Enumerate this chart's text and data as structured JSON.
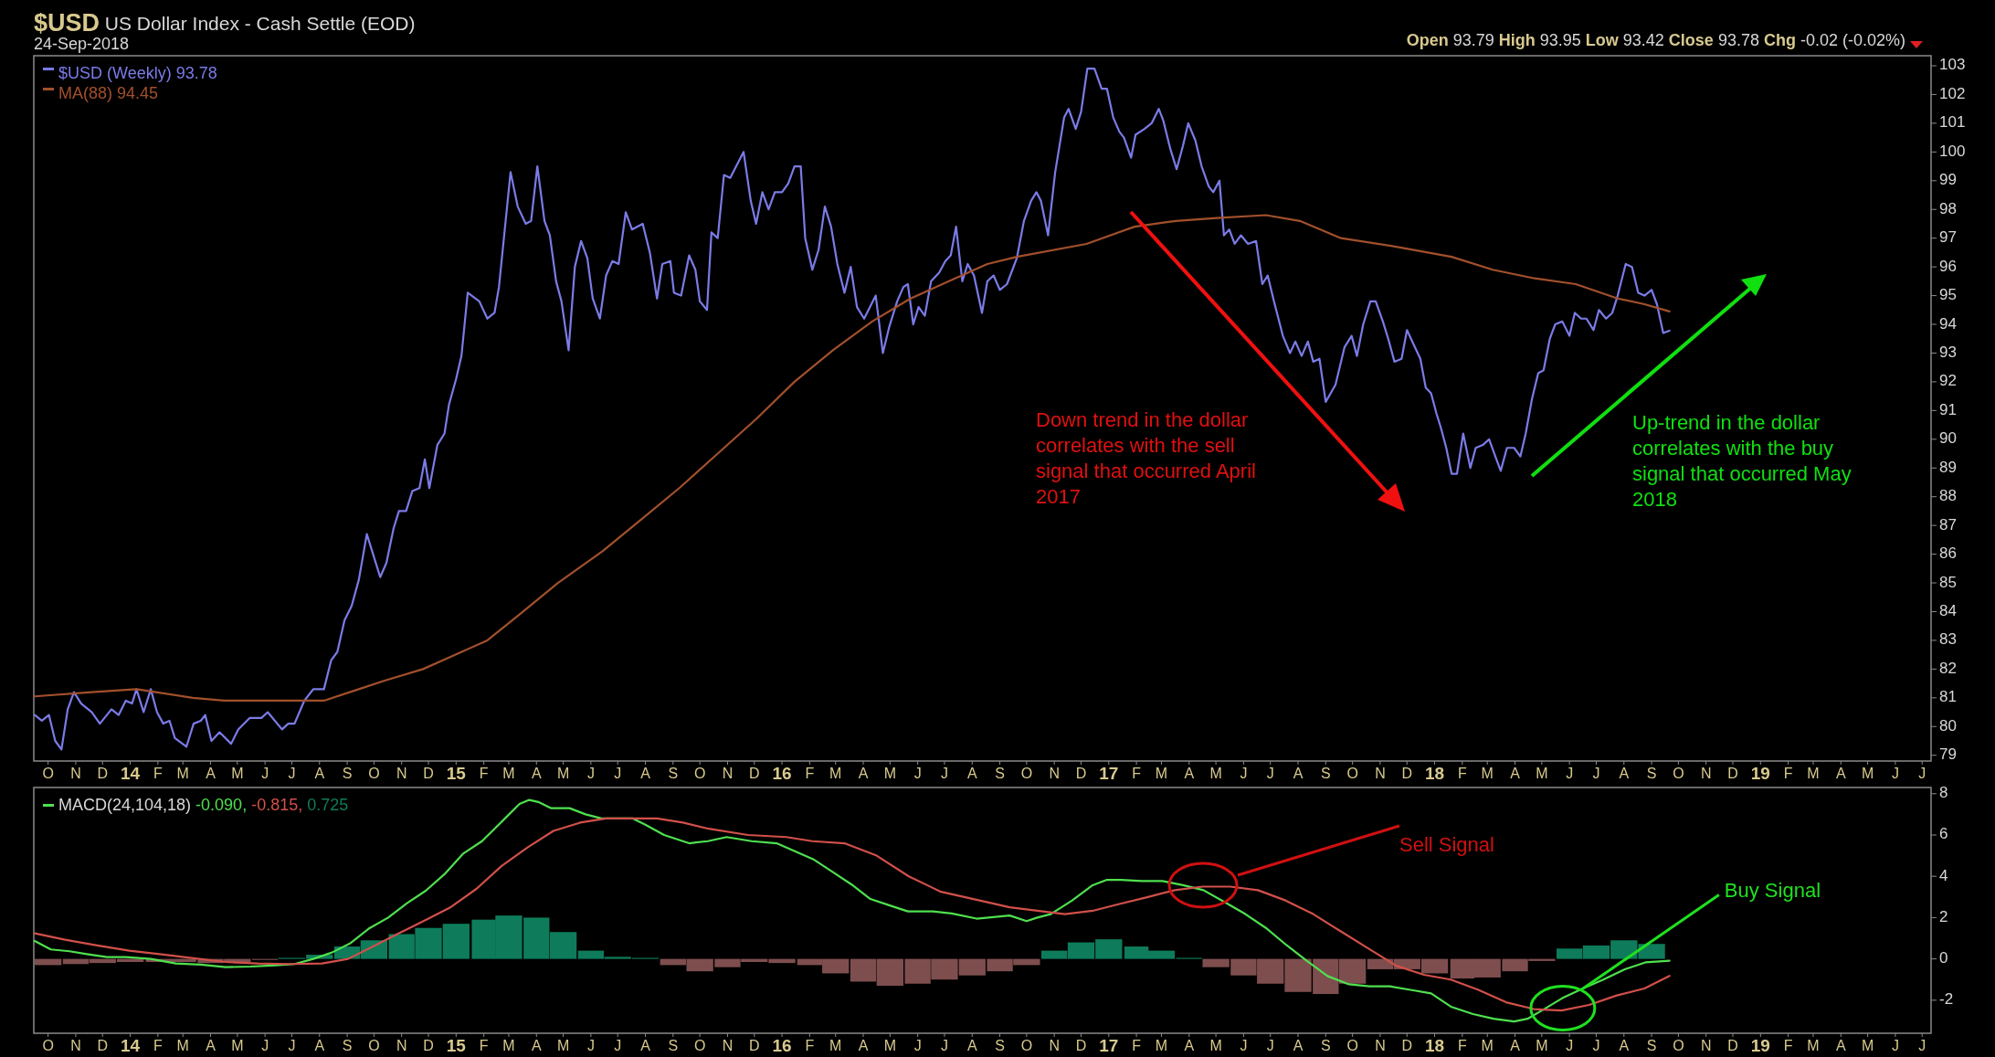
{
  "chart_data": [
    {
      "type": "line",
      "title": "$USD US Dollar Index - Cash Settle (EOD)",
      "subtitle": "24-Sep-2018",
      "annotations": [
        "Open 93.79 High 93.95 Low 93.42 Close 93.78 Chg -0.02 (-0.02%)",
        "Down trend in the dollar correlates with the sell signal that occurred April 2017",
        "Up-trend in the dollar correlates with the buy signal that occurred May 2018"
      ],
      "xlim": [
        "2013-09-15",
        "2019-07-11"
      ],
      "xticks": [
        {
          "value": "2013-10-01",
          "label": "O"
        },
        {
          "value": "2013-11-01",
          "label": "N"
        },
        {
          "value": "2013-12-01",
          "label": "D"
        },
        {
          "value": "2014-01-01",
          "label": "14"
        },
        {
          "value": "2014-02-01",
          "label": "F"
        },
        {
          "value": "2014-03-01",
          "label": "M"
        },
        {
          "value": "2014-04-01",
          "label": "A"
        },
        {
          "value": "2014-05-01",
          "label": "M"
        },
        {
          "value": "2014-06-01",
          "label": "J"
        },
        {
          "value": "2014-07-01",
          "label": "J"
        },
        {
          "value": "2014-08-01",
          "label": "A"
        },
        {
          "value": "2014-09-01",
          "label": "S"
        },
        {
          "value": "2014-10-01",
          "label": "O"
        },
        {
          "value": "2014-11-01",
          "label": "N"
        },
        {
          "value": "2014-12-01",
          "label": "D"
        },
        {
          "value": "2015-01-01",
          "label": "15"
        },
        {
          "value": "2015-02-01",
          "label": "F"
        },
        {
          "value": "2015-03-01",
          "label": "M"
        },
        {
          "value": "2015-04-01",
          "label": "A"
        },
        {
          "value": "2015-05-01",
          "label": "M"
        },
        {
          "value": "2015-06-01",
          "label": "J"
        },
        {
          "value": "2015-07-01",
          "label": "J"
        },
        {
          "value": "2015-08-01",
          "label": "A"
        },
        {
          "value": "2015-09-01",
          "label": "S"
        },
        {
          "value": "2015-10-01",
          "label": "O"
        },
        {
          "value": "2015-11-01",
          "label": "N"
        },
        {
          "value": "2015-12-01",
          "label": "D"
        },
        {
          "value": "2016-01-01",
          "label": "16"
        },
        {
          "value": "2016-02-01",
          "label": "F"
        },
        {
          "value": "2016-03-01",
          "label": "M"
        },
        {
          "value": "2016-04-01",
          "label": "A"
        },
        {
          "value": "2016-05-01",
          "label": "M"
        },
        {
          "value": "2016-06-01",
          "label": "J"
        },
        {
          "value": "2016-07-01",
          "label": "J"
        },
        {
          "value": "2016-08-01",
          "label": "A"
        },
        {
          "value": "2016-09-01",
          "label": "S"
        },
        {
          "value": "2016-10-01",
          "label": "O"
        },
        {
          "value": "2016-11-01",
          "label": "N"
        },
        {
          "value": "2016-12-01",
          "label": "D"
        },
        {
          "value": "2017-01-01",
          "label": "17"
        },
        {
          "value": "2017-02-01",
          "label": "F"
        },
        {
          "value": "2017-03-01",
          "label": "M"
        },
        {
          "value": "2017-04-01",
          "label": "A"
        },
        {
          "value": "2017-05-01",
          "label": "M"
        },
        {
          "value": "2017-06-01",
          "label": "J"
        },
        {
          "value": "2017-07-01",
          "label": "J"
        },
        {
          "value": "2017-08-01",
          "label": "A"
        },
        {
          "value": "2017-09-01",
          "label": "S"
        },
        {
          "value": "2017-10-01",
          "label": "O"
        },
        {
          "value": "2017-11-01",
          "label": "N"
        },
        {
          "value": "2017-12-01",
          "label": "D"
        },
        {
          "value": "2018-01-01",
          "label": "18"
        },
        {
          "value": "2018-02-01",
          "label": "F"
        },
        {
          "value": "2018-03-01",
          "label": "M"
        },
        {
          "value": "2018-04-01",
          "label": "A"
        },
        {
          "value": "2018-05-01",
          "label": "M"
        },
        {
          "value": "2018-06-01",
          "label": "J"
        },
        {
          "value": "2018-07-01",
          "label": "J"
        },
        {
          "value": "2018-08-01",
          "label": "A"
        },
        {
          "value": "2018-09-01",
          "label": "S"
        },
        {
          "value": "2018-10-01",
          "label": "O"
        },
        {
          "value": "2018-11-01",
          "label": "N"
        },
        {
          "value": "2018-12-01",
          "label": "D"
        },
        {
          "value": "2019-01-01",
          "label": "19"
        },
        {
          "value": "2019-02-01",
          "label": "F"
        },
        {
          "value": "2019-03-01",
          "label": "M"
        },
        {
          "value": "2019-04-01",
          "label": "A"
        },
        {
          "value": "2019-05-01",
          "label": "M"
        },
        {
          "value": "2019-06-01",
          "label": "J"
        },
        {
          "value": "2019-07-01",
          "label": "J"
        }
      ],
      "ylim": [
        78.8,
        103.35
      ],
      "yticks": [
        79,
        80,
        81,
        82,
        83,
        84,
        85,
        86,
        87,
        88,
        89,
        90,
        91,
        92,
        93,
        94,
        95,
        96,
        97,
        98,
        99,
        100,
        101,
        102,
        103
      ],
      "legend": "top left",
      "series": [
        {
          "name": "$USD (Weekly) 93.78",
          "color": "#7b7be8",
          "x": [
            "2013-09-16",
            "2013-09-24",
            "2013-10-02",
            "2013-10-09",
            "2013-10-16",
            "2013-10-23",
            "2013-10-30",
            "2013-11-07",
            "2013-11-19",
            "2013-11-28",
            "2013-12-11",
            "2013-12-19",
            "2013-12-27",
            "2014-01-03",
            "2014-01-08",
            "2014-01-16",
            "2014-01-24",
            "2014-01-31",
            "2014-02-07",
            "2014-02-14",
            "2014-02-20",
            "2014-03-05",
            "2014-03-13",
            "2014-03-21",
            "2014-03-26",
            "2014-04-02",
            "2014-04-11",
            "2014-04-24",
            "2014-05-02",
            "2014-05-15",
            "2014-05-28",
            "2014-06-04",
            "2014-06-20",
            "2014-06-27",
            "2014-07-04",
            "2014-07-15",
            "2014-07-25",
            "2014-08-06",
            "2014-08-14",
            "2014-08-21",
            "2014-08-29",
            "2014-09-06",
            "2014-09-14",
            "2014-09-23",
            "2014-10-08",
            "2014-10-15",
            "2014-10-23",
            "2014-10-29",
            "2014-11-06",
            "2014-11-13",
            "2014-11-21",
            "2014-11-27",
            "2014-12-02",
            "2014-12-11",
            "2014-12-19",
            "2014-12-24",
            "2015-01-01",
            "2015-01-07",
            "2015-01-14",
            "2015-01-27",
            "2015-02-05",
            "2015-02-13",
            "2015-02-18",
            "2015-03-03",
            "2015-03-11",
            "2015-03-20",
            "2015-03-26",
            "2015-04-02",
            "2015-04-10",
            "2015-04-16",
            "2015-04-23",
            "2015-04-29",
            "2015-05-07",
            "2015-05-14",
            "2015-05-21",
            "2015-05-28",
            "2015-06-03",
            "2015-06-11",
            "2015-06-18",
            "2015-06-25",
            "2015-07-02",
            "2015-07-10",
            "2015-07-17",
            "2015-07-29",
            "2015-08-06",
            "2015-08-14",
            "2015-08-20",
            "2015-08-29",
            "2015-09-02",
            "2015-09-10",
            "2015-09-19",
            "2015-09-26",
            "2015-10-01",
            "2015-10-09",
            "2015-10-14",
            "2015-10-21",
            "2015-10-28",
            "2015-11-04",
            "2015-11-19",
            "2015-11-27",
            "2015-12-03",
            "2015-12-10",
            "2015-12-17",
            "2015-12-24",
            "2016-01-01",
            "2016-01-08",
            "2016-01-15",
            "2016-01-22",
            "2016-01-27",
            "2016-02-04",
            "2016-02-11",
            "2016-02-18",
            "2016-02-25",
            "2016-03-03",
            "2016-03-11",
            "2016-03-18",
            "2016-03-25",
            "2016-04-02",
            "2016-04-15",
            "2016-04-23",
            "2016-04-30",
            "2016-05-09",
            "2016-05-16",
            "2016-05-21",
            "2016-05-27",
            "2016-06-02",
            "2016-06-09",
            "2016-06-16",
            "2016-06-25",
            "2016-07-02",
            "2016-07-08",
            "2016-07-14",
            "2016-07-21",
            "2016-07-27",
            "2016-08-03",
            "2016-08-12",
            "2016-08-18",
            "2016-08-25",
            "2016-09-01",
            "2016-09-09",
            "2016-09-20",
            "2016-09-28",
            "2016-10-06",
            "2016-10-12",
            "2016-10-17",
            "2016-10-25",
            "2016-11-02",
            "2016-11-12",
            "2016-11-17",
            "2016-11-25",
            "2016-12-01",
            "2016-12-08",
            "2016-12-16",
            "2016-12-24",
            "2016-12-30",
            "2017-01-06",
            "2017-01-13",
            "2017-01-18",
            "2017-01-26",
            "2017-01-31",
            "2017-02-10",
            "2017-02-18",
            "2017-02-26",
            "2017-03-03",
            "2017-03-11",
            "2017-03-18",
            "2017-03-25",
            "2017-03-31",
            "2017-04-08",
            "2017-04-15",
            "2017-04-23",
            "2017-04-28",
            "2017-05-05",
            "2017-05-10",
            "2017-05-16",
            "2017-05-22",
            "2017-05-29",
            "2017-06-06",
            "2017-06-15",
            "2017-06-22",
            "2017-06-28",
            "2017-07-05",
            "2017-07-15",
            "2017-07-23",
            "2017-07-29",
            "2017-08-05",
            "2017-08-12",
            "2017-08-18",
            "2017-08-25",
            "2017-09-01",
            "2017-09-12",
            "2017-09-22",
            "2017-09-30",
            "2017-10-06",
            "2017-10-13",
            "2017-10-21",
            "2017-10-27",
            "2017-11-04",
            "2017-11-10",
            "2017-11-17",
            "2017-11-25",
            "2017-12-01",
            "2017-12-10",
            "2017-12-16",
            "2017-12-22",
            "2017-12-28",
            "2018-01-03",
            "2018-01-08",
            "2018-01-14",
            "2018-01-20",
            "2018-01-26",
            "2018-02-02",
            "2018-02-10",
            "2018-02-16",
            "2018-02-24",
            "2018-03-03",
            "2018-03-10",
            "2018-03-16",
            "2018-03-23",
            "2018-03-31",
            "2018-04-07",
            "2018-04-13",
            "2018-04-20",
            "2018-04-27",
            "2018-05-03",
            "2018-05-10",
            "2018-05-16",
            "2018-05-24",
            "2018-06-01",
            "2018-06-07",
            "2018-06-14",
            "2018-06-20",
            "2018-06-28",
            "2018-07-04",
            "2018-07-12",
            "2018-07-19",
            "2018-07-25",
            "2018-08-03",
            "2018-08-10",
            "2018-08-17",
            "2018-08-24",
            "2018-09-01",
            "2018-09-07",
            "2018-09-14",
            "2018-09-21"
          ],
          "values": [
            80.4,
            80.2,
            80.4,
            79.5,
            79.2,
            80.6,
            81.2,
            80.8,
            80.5,
            80.1,
            80.6,
            80.4,
            80.9,
            80.8,
            81.3,
            80.5,
            81.3,
            80.5,
            80.1,
            80.2,
            79.6,
            79.3,
            80.1,
            80.2,
            80.4,
            79.5,
            79.8,
            79.4,
            79.9,
            80.3,
            80.3,
            80.5,
            79.9,
            80.1,
            80.1,
            80.9,
            81.3,
            81.3,
            82.3,
            82.6,
            83.7,
            84.2,
            85.1,
            86.7,
            85.2,
            85.7,
            86.9,
            87.5,
            87.5,
            88.2,
            88.3,
            89.3,
            88.3,
            89.8,
            90.2,
            91.2,
            92.1,
            92.9,
            95.1,
            94.8,
            94.2,
            94.4,
            95.3,
            99.3,
            98.1,
            97.5,
            97.6,
            99.5,
            97.6,
            97.1,
            95.5,
            94.8,
            93.1,
            96.0,
            96.9,
            96.3,
            94.9,
            94.2,
            95.7,
            96.2,
            96.1,
            97.9,
            97.3,
            97.5,
            96.5,
            94.9,
            96.1,
            96.2,
            95.1,
            95.0,
            96.4,
            95.9,
            94.8,
            94.5,
            97.2,
            97.0,
            99.2,
            99.1,
            100.0,
            98.3,
            97.5,
            98.6,
            98.0,
            98.6,
            98.6,
            98.9,
            99.5,
            99.5,
            97.0,
            95.9,
            96.6,
            98.1,
            97.4,
            96.1,
            95.1,
            96.0,
            94.6,
            94.2,
            95.0,
            93.0,
            93.9,
            94.8,
            95.3,
            95.4,
            94.0,
            94.6,
            94.3,
            95.5,
            95.8,
            96.2,
            96.4,
            97.4,
            95.5,
            96.1,
            95.7,
            94.4,
            95.5,
            95.7,
            95.2,
            95.4,
            96.3,
            97.6,
            98.3,
            98.6,
            98.3,
            97.1,
            99.3,
            101.2,
            101.5,
            100.8,
            101.4,
            102.9,
            102.9,
            102.2,
            102.2,
            101.2,
            100.7,
            100.5,
            99.8,
            100.6,
            100.8,
            101.0,
            101.5,
            101.1,
            100.1,
            99.4,
            100.2,
            101.0,
            100.4,
            99.5,
            98.8,
            98.6,
            99.0,
            97.1,
            97.3,
            96.8,
            97.1,
            96.8,
            96.9,
            95.4,
            95.7,
            94.8,
            93.6,
            93.0,
            93.4,
            92.9,
            93.4,
            92.7,
            92.8,
            91.3,
            91.9,
            93.2,
            93.6,
            92.9,
            94.0,
            94.8,
            94.8,
            94.1,
            93.5,
            92.7,
            92.8,
            93.8,
            93.2,
            92.8,
            91.8,
            91.6,
            90.9,
            90.4,
            89.7,
            88.8,
            88.8,
            90.2,
            89.0,
            89.7,
            89.8,
            90.0,
            89.4,
            88.9,
            89.7,
            89.7,
            89.4,
            90.2,
            91.4,
            92.3,
            92.4,
            93.5,
            94.0,
            94.1,
            93.6,
            94.4,
            94.2,
            94.2,
            93.8,
            94.5,
            94.2,
            94.4,
            95.0,
            96.1,
            96.0,
            95.1,
            95.0,
            95.2,
            94.7,
            93.7,
            93.78
          ]
        },
        {
          "name": "MA(88) 94.45",
          "color": "#a2502c",
          "x": [
            "2013-09-16",
            "2013-11-19",
            "2014-01-08",
            "2014-03-12",
            "2014-04-16",
            "2014-06-06",
            "2014-08-06",
            "2014-09-14",
            "2014-10-13",
            "2014-11-25",
            "2014-12-24",
            "2015-02-05",
            "2015-03-13",
            "2015-04-25",
            "2015-06-14",
            "2015-07-27",
            "2015-09-08",
            "2015-10-21",
            "2015-12-03",
            "2016-01-15",
            "2016-02-27",
            "2016-04-11",
            "2016-05-24",
            "2016-07-06",
            "2016-08-18",
            "2016-09-20",
            "2016-12-07",
            "2017-01-30",
            "2017-03-17",
            "2017-05-02",
            "2017-06-26",
            "2017-08-03",
            "2017-09-18",
            "2017-11-19",
            "2018-01-20",
            "2018-03-07",
            "2018-04-23",
            "2018-06-08",
            "2018-07-25",
            "2018-08-24",
            "2018-09-21"
          ],
          "values": [
            81.05,
            81.2,
            81.3,
            81.0,
            80.9,
            80.9,
            80.9,
            81.3,
            81.6,
            82.0,
            82.4,
            83.0,
            83.9,
            85.0,
            86.1,
            87.2,
            88.3,
            89.5,
            90.7,
            92.0,
            93.1,
            94.1,
            94.9,
            95.5,
            96.1,
            96.35,
            96.8,
            97.4,
            97.6,
            97.7,
            97.8,
            97.6,
            97.0,
            96.7,
            96.35,
            95.9,
            95.6,
            95.4,
            94.9,
            94.7,
            94.45
          ]
        }
      ]
    },
    {
      "type": "line",
      "annotations": [
        "Sell Signal",
        {
          "text": "Buy Signal",
          "x": "2018-06-14",
          "y": -1.5
        }
      ],
      "xlim": [
        "2013-09-15",
        "2019-07-11"
      ],
      "xticks": [
        {
          "value": "2013-10-01",
          "label": "O"
        },
        {
          "value": "2013-11-01",
          "label": "N"
        },
        {
          "value": "2013-12-01",
          "label": "D"
        },
        {
          "value": "2014-01-01",
          "label": "14"
        },
        {
          "value": "2014-02-01",
          "label": "F"
        },
        {
          "value": "2014-03-01",
          "label": "M"
        },
        {
          "value": "2014-04-01",
          "label": "A"
        },
        {
          "value": "2014-05-01",
          "label": "M"
        },
        {
          "value": "2014-06-01",
          "label": "J"
        },
        {
          "value": "2014-07-01",
          "label": "J"
        },
        {
          "value": "2014-08-01",
          "label": "A"
        },
        {
          "value": "2014-09-01",
          "label": "S"
        },
        {
          "value": "2014-10-01",
          "label": "O"
        },
        {
          "value": "2014-11-01",
          "label": "N"
        },
        {
          "value": "2014-12-01",
          "label": "D"
        },
        {
          "value": "2015-01-01",
          "label": "15"
        },
        {
          "value": "2015-02-01",
          "label": "F"
        },
        {
          "value": "2015-03-01",
          "label": "M"
        },
        {
          "value": "2015-04-01",
          "label": "A"
        },
        {
          "value": "2015-05-01",
          "label": "M"
        },
        {
          "value": "2015-06-01",
          "label": "J"
        },
        {
          "value": "2015-07-01",
          "label": "J"
        },
        {
          "value": "2015-08-01",
          "label": "A"
        },
        {
          "value": "2015-09-01",
          "label": "S"
        },
        {
          "value": "2015-10-01",
          "label": "O"
        },
        {
          "value": "2015-11-01",
          "label": "N"
        },
        {
          "value": "2015-12-01",
          "label": "D"
        },
        {
          "value": "2016-01-01",
          "label": "16"
        },
        {
          "value": "2016-02-01",
          "label": "F"
        },
        {
          "value": "2016-03-01",
          "label": "M"
        },
        {
          "value": "2016-04-01",
          "label": "A"
        },
        {
          "value": "2016-05-01",
          "label": "M"
        },
        {
          "value": "2016-06-01",
          "label": "J"
        },
        {
          "value": "2016-07-01",
          "label": "J"
        },
        {
          "value": "2016-08-01",
          "label": "A"
        },
        {
          "value": "2016-09-01",
          "label": "S"
        },
        {
          "value": "2016-10-01",
          "label": "O"
        },
        {
          "value": "2016-11-01",
          "label": "N"
        },
        {
          "value": "2016-12-01",
          "label": "D"
        },
        {
          "value": "2017-01-01",
          "label": "17"
        },
        {
          "value": "2017-02-01",
          "label": "F"
        },
        {
          "value": "2017-03-01",
          "label": "M"
        },
        {
          "value": "2017-04-01",
          "label": "A"
        },
        {
          "value": "2017-05-01",
          "label": "M"
        },
        {
          "value": "2017-06-01",
          "label": "J"
        },
        {
          "value": "2017-07-01",
          "label": "J"
        },
        {
          "value": "2017-08-01",
          "label": "A"
        },
        {
          "value": "2017-09-01",
          "label": "S"
        },
        {
          "value": "2017-10-01",
          "label": "O"
        },
        {
          "value": "2017-11-01",
          "label": "N"
        },
        {
          "value": "2017-12-01",
          "label": "D"
        },
        {
          "value": "2018-01-01",
          "label": "18"
        },
        {
          "value": "2018-02-01",
          "label": "F"
        },
        {
          "value": "2018-03-01",
          "label": "M"
        },
        {
          "value": "2018-04-01",
          "label": "A"
        },
        {
          "value": "2018-05-01",
          "label": "M"
        },
        {
          "value": "2018-06-01",
          "label": "J"
        },
        {
          "value": "2018-07-01",
          "label": "J"
        },
        {
          "value": "2018-08-01",
          "label": "A"
        },
        {
          "value": "2018-09-01",
          "label": "S"
        },
        {
          "value": "2018-10-01",
          "label": "O"
        },
        {
          "value": "2018-11-01",
          "label": "N"
        },
        {
          "value": "2018-12-01",
          "label": "D"
        },
        {
          "value": "2019-01-01",
          "label": "19"
        },
        {
          "value": "2019-02-01",
          "label": "F"
        },
        {
          "value": "2019-03-01",
          "label": "M"
        },
        {
          "value": "2019-04-01",
          "label": "A"
        },
        {
          "value": "2019-05-01",
          "label": "M"
        },
        {
          "value": "2019-06-01",
          "label": "J"
        },
        {
          "value": "2019-07-01",
          "label": "J"
        }
      ],
      "ylim": [
        -3.6,
        8.3
      ],
      "yticks": [
        -2,
        0,
        2,
        4,
        6,
        8
      ],
      "legend": "top left",
      "series": [
        {
          "name": "0.725",
          "type": "bar",
          "x": [
            "2013-10-01",
            "2013-11-01",
            "2013-12-01",
            "2014-01-01",
            "2014-02-01",
            "2014-03-01",
            "2014-04-01",
            "2014-05-01",
            "2014-06-01",
            "2014-07-01",
            "2014-08-01",
            "2014-09-01",
            "2014-10-01",
            "2014-11-01",
            "2014-12-01",
            "2015-01-01",
            "2015-02-01",
            "2015-03-01",
            "2015-04-01",
            "2015-05-01",
            "2015-06-01",
            "2015-07-01",
            "2015-08-01",
            "2015-09-01",
            "2015-10-01",
            "2015-11-01",
            "2015-12-01",
            "2016-01-01",
            "2016-02-01",
            "2016-03-01",
            "2016-04-01",
            "2016-05-01",
            "2016-06-01",
            "2016-07-01",
            "2016-08-01",
            "2016-09-01",
            "2016-10-01",
            "2016-11-01",
            "2016-12-01",
            "2017-01-01",
            "2017-02-01",
            "2017-03-01",
            "2017-04-01",
            "2017-05-01",
            "2017-06-01",
            "2017-07-01",
            "2017-08-01",
            "2017-09-01",
            "2017-10-01",
            "2017-11-01",
            "2017-12-01",
            "2018-01-01",
            "2018-02-01",
            "2018-03-01",
            "2018-04-01",
            "2018-05-01",
            "2018-06-01",
            "2018-07-01",
            "2018-08-01",
            "2018-09-01"
          ],
          "values": [
            -0.3,
            -0.25,
            -0.2,
            -0.15,
            -0.15,
            -0.15,
            -0.2,
            -0.15,
            -0.05,
            0.05,
            0.2,
            0.6,
            0.9,
            1.2,
            1.5,
            1.7,
            1.9,
            2.1,
            2.0,
            1.3,
            0.4,
            0.1,
            0.05,
            -0.3,
            -0.6,
            -0.4,
            -0.15,
            -0.2,
            -0.3,
            -0.7,
            -1.1,
            -1.3,
            -1.2,
            -1.0,
            -0.8,
            -0.6,
            -0.3,
            0.4,
            0.8,
            0.95,
            0.6,
            0.4,
            0.05,
            -0.4,
            -0.8,
            -1.2,
            -1.6,
            -1.7,
            -1.2,
            -0.5,
            -0.5,
            -0.7,
            -0.95,
            -0.9,
            -0.6,
            -0.1,
            0.5,
            0.65,
            0.9,
            0.725
          ],
          "color": "#0e7c5a",
          "colors": [
            "#7e4e4e",
            "#7e4e4e",
            "#7e4e4e",
            "#7e4e4e",
            "#7e4e4e",
            "#7e4e4e",
            "#7e4e4e",
            "#7e4e4e",
            "#7e4e4e",
            "#0e7c5a",
            "#0e7c5a",
            "#0e7c5a",
            "#0e7c5a",
            "#0e7c5a",
            "#0e7c5a",
            "#0e7c5a",
            "#0e7c5a",
            "#0e7c5a",
            "#0e7c5a",
            "#0e7c5a",
            "#0e7c5a",
            "#0e7c5a",
            "#0e7c5a",
            "#7e4e4e",
            "#7e4e4e",
            "#7e4e4e",
            "#7e4e4e",
            "#7e4e4e",
            "#7e4e4e",
            "#7e4e4e",
            "#7e4e4e",
            "#7e4e4e",
            "#7e4e4e",
            "#7e4e4e",
            "#7e4e4e",
            "#7e4e4e",
            "#7e4e4e",
            "#0e7c5a",
            "#0e7c5a",
            "#0e7c5a",
            "#0e7c5a",
            "#0e7c5a",
            "#0e7c5a",
            "#7e4e4e",
            "#7e4e4e",
            "#7e4e4e",
            "#7e4e4e",
            "#7e4e4e",
            "#7e4e4e",
            "#7e4e4e",
            "#7e4e4e",
            "#7e4e4e",
            "#7e4e4e",
            "#7e4e4e",
            "#7e4e4e",
            "#7e4e4e",
            "#0e7c5a",
            "#0e7c5a",
            "#0e7c5a",
            "#0e7c5a"
          ]
        },
        {
          "name": "MACD(24,104,18) -0.090,",
          "color": "#4fe04f",
          "x": [
            "2013-09-16",
            "2013-10-04",
            "2013-10-25",
            "2013-11-15",
            "2013-12-06",
            "2013-12-27",
            "2014-01-24",
            "2014-02-21",
            "2014-03-21",
            "2014-04-18",
            "2014-05-16",
            "2014-06-13",
            "2014-07-04",
            "2014-07-25",
            "2014-08-15",
            "2014-09-05",
            "2014-09-26",
            "2014-10-17",
            "2014-11-07",
            "2014-11-28",
            "2014-12-19",
            "2015-01-09",
            "2015-01-30",
            "2015-02-13",
            "2015-02-27",
            "2015-03-13",
            "2015-03-24",
            "2015-04-03",
            "2015-04-17",
            "2015-05-08",
            "2015-05-26",
            "2015-06-13",
            "2015-07-04",
            "2015-07-18",
            "2015-08-01",
            "2015-08-22",
            "2015-09-19",
            "2015-10-10",
            "2015-10-31",
            "2015-11-28",
            "2015-12-26",
            "2016-01-16",
            "2016-02-06",
            "2016-02-27",
            "2016-03-19",
            "2016-04-09",
            "2016-04-30",
            "2016-05-21",
            "2016-06-18",
            "2016-07-09",
            "2016-08-06",
            "2016-09-12",
            "2016-10-01",
            "2016-10-13",
            "2016-10-28",
            "2016-11-21",
            "2016-12-14",
            "2016-12-30",
            "2017-01-15",
            "2017-02-07",
            "2017-03-02",
            "2017-03-25",
            "2017-04-17",
            "2017-05-10",
            "2017-06-03",
            "2017-06-26",
            "2017-07-19",
            "2017-08-11",
            "2017-09-03",
            "2017-09-27",
            "2017-10-20",
            "2017-11-12",
            "2017-12-05",
            "2017-12-28",
            "2018-01-20",
            "2018-02-13",
            "2018-03-08",
            "2018-03-31",
            "2018-04-15",
            "2018-05-01",
            "2018-05-24",
            "2018-06-16",
            "2018-07-09",
            "2018-08-02",
            "2018-08-25",
            "2018-09-21"
          ],
          "values": [
            0.87,
            0.46,
            0.37,
            0.22,
            0.09,
            0.09,
            0,
            -0.22,
            -0.28,
            -0.4,
            -0.37,
            -0.31,
            -0.25,
            0,
            0.31,
            0.77,
            1.49,
            2.0,
            2.7,
            3.3,
            4.1,
            5.1,
            5.7,
            6.3,
            6.9,
            7.5,
            7.7,
            7.6,
            7.3,
            7.3,
            7.0,
            6.8,
            6.8,
            6.8,
            6.5,
            6.0,
            5.6,
            5.7,
            5.9,
            5.7,
            5.6,
            5.2,
            4.8,
            4.2,
            3.6,
            2.9,
            2.6,
            2.3,
            2.3,
            2.2,
            1.95,
            2.1,
            1.83,
            2.0,
            2.17,
            2.83,
            3.57,
            3.83,
            3.83,
            3.77,
            3.77,
            3.57,
            3.33,
            2.77,
            2.17,
            1.5,
            0.67,
            -0.1,
            -0.83,
            -1.23,
            -1.33,
            -1.33,
            -1.5,
            -1.67,
            -2.33,
            -2.67,
            -2.9,
            -3.03,
            -2.9,
            -2.5,
            -1.9,
            -1.43,
            -1.0,
            -0.5,
            -0.17,
            -0.09
          ]
        },
        {
          "name": "-0.815,",
          "color": "#d2504a",
          "x": [
            "2013-09-16",
            "2013-10-20",
            "2013-11-25",
            "2013-12-31",
            "2014-02-05",
            "2014-03-13",
            "2014-04-18",
            "2014-05-24",
            "2014-06-29",
            "2014-08-04",
            "2014-09-02",
            "2014-10-01",
            "2014-10-29",
            "2014-11-27",
            "2014-12-25",
            "2015-01-24",
            "2015-02-21",
            "2015-03-22",
            "2015-04-20",
            "2015-05-20",
            "2015-06-18",
            "2015-07-17",
            "2015-08-14",
            "2015-09-12",
            "2015-10-11",
            "2015-11-24",
            "2016-01-06",
            "2016-02-04",
            "2016-03-11",
            "2016-04-16",
            "2016-05-22",
            "2016-06-27",
            "2016-08-07",
            "2016-09-12",
            "2016-10-13",
            "2016-11-13",
            "2016-12-14",
            "2017-01-14",
            "2017-02-14",
            "2017-03-16",
            "2017-04-16",
            "2017-05-17",
            "2017-06-17",
            "2017-07-18",
            "2017-08-18",
            "2017-09-18",
            "2017-10-19",
            "2017-11-19",
            "2017-12-20",
            "2018-01-19",
            "2018-02-19",
            "2018-03-22",
            "2018-04-22",
            "2018-05-23",
            "2018-06-23",
            "2018-07-24",
            "2018-08-24",
            "2018-09-21"
          ],
          "values": [
            1.24,
            0.93,
            0.65,
            0.4,
            0.22,
            0.03,
            -0.15,
            -0.22,
            -0.25,
            -0.22,
            0,
            0.62,
            1.24,
            1.86,
            2.48,
            3.4,
            4.5,
            5.4,
            6.2,
            6.6,
            6.8,
            6.8,
            6.8,
            6.6,
            6.3,
            6.0,
            5.9,
            5.7,
            5.6,
            5.0,
            4.0,
            3.25,
            2.85,
            2.5,
            2.33,
            2.17,
            2.33,
            2.67,
            3.0,
            3.33,
            3.5,
            3.5,
            3.33,
            2.83,
            2.17,
            1.33,
            0.5,
            -0.33,
            -0.77,
            -1.0,
            -1.5,
            -2.1,
            -2.43,
            -2.5,
            -2.23,
            -1.77,
            -1.43,
            -0.82
          ]
        }
      ]
    }
  ]
}
